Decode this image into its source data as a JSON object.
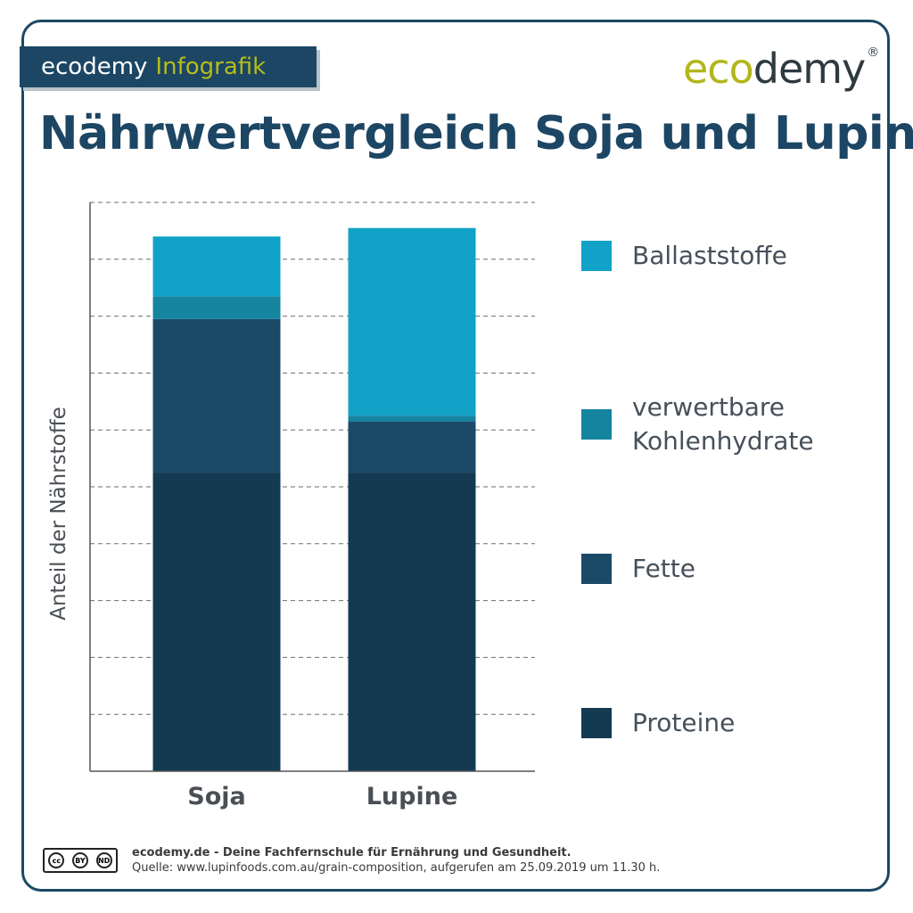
{
  "badge": {
    "brand": "ecodemy",
    "label": "Infografik"
  },
  "logo": {
    "eco": "eco",
    "demy": "demy",
    "mark": "®"
  },
  "title": "Nährwertvergleich Soja und Lupine",
  "colors": {
    "proteine": "#143a52",
    "fette": "#1b4a68",
    "kohlenhydrate": "#14849f",
    "ballaststoffe": "#12a2c7",
    "grid": "#6e6e6e",
    "axis": "#555555"
  },
  "chart_data": {
    "type": "bar",
    "stacked": true,
    "categories": [
      "Soja",
      "Lupine"
    ],
    "ylabel": "Anteil der Nährstoffe",
    "xlabel": "",
    "ylim": [
      0,
      100
    ],
    "grid": true,
    "legend_position": "right",
    "series": [
      {
        "name": "Proteine",
        "values": [
          52.5,
          52.5
        ],
        "color": "#143a52"
      },
      {
        "name": "Fette",
        "values": [
          27,
          9
        ],
        "color": "#1b4a68"
      },
      {
        "name": "verwertbare Kohlenhydrate",
        "values": [
          4,
          1
        ],
        "color": "#14849f"
      },
      {
        "name": "Ballaststoffe",
        "values": [
          10.5,
          33
        ],
        "color": "#12a2c7"
      }
    ]
  },
  "legend": [
    {
      "label": "Ballaststoffe",
      "color": "#12a2c7"
    },
    {
      "label": "verwertbare Kohlenhydrate",
      "color": "#14849f"
    },
    {
      "label": "Fette",
      "color": "#1b4a68"
    },
    {
      "label": "Proteine",
      "color": "#143a52"
    }
  ],
  "footer": {
    "line1": "ecodemy.de - Deine Fachfernschule für Ernährung und Gesundheit.",
    "line2": "Quelle: www.lupinfoods.com.au/grain-composition, aufgerufen am 25.09.2019 um 11.30 h.",
    "license": {
      "cc": "cc",
      "by": "BY",
      "nd": "ND"
    }
  }
}
